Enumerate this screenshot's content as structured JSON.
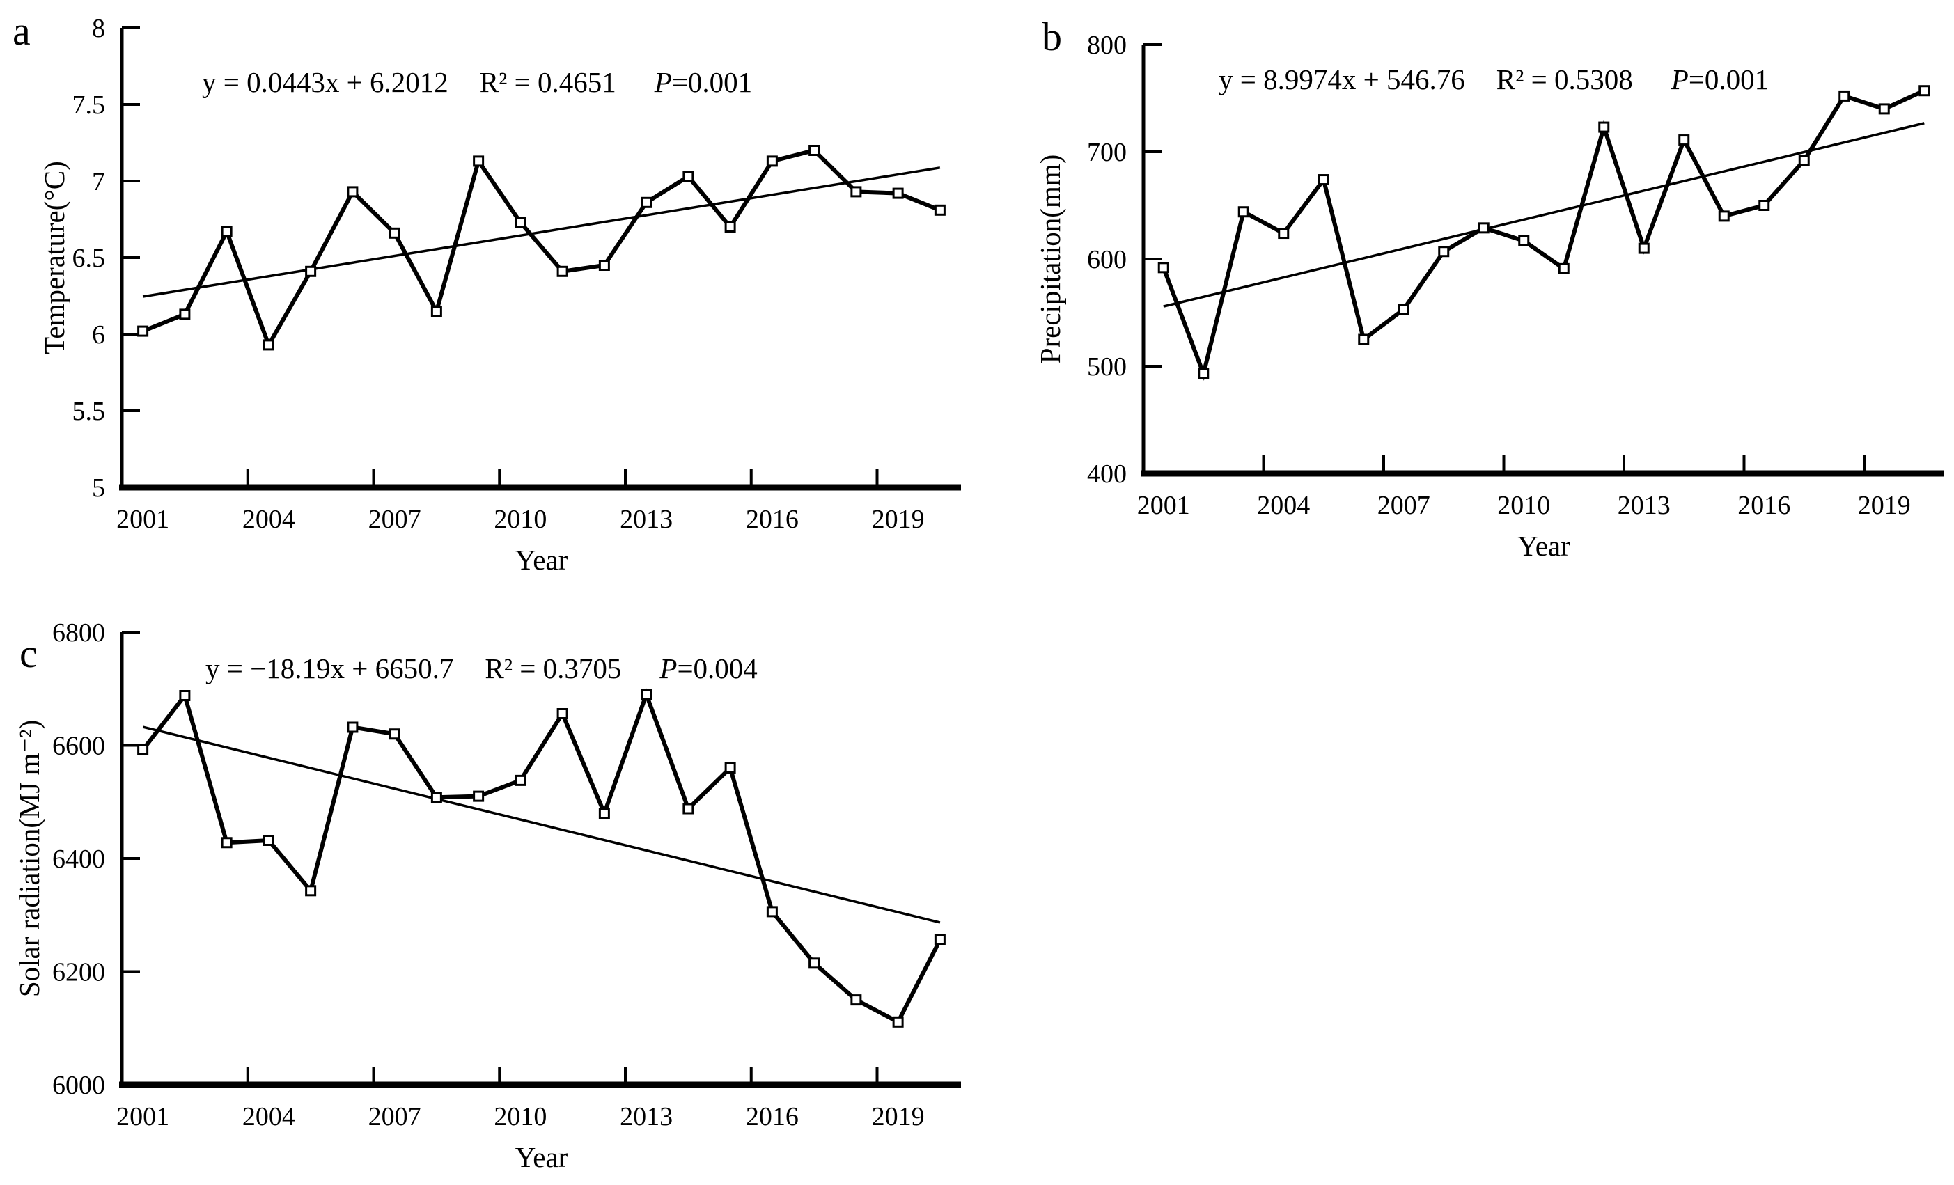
{
  "figure": {
    "background": "#ffffff",
    "ink_color": "#000000",
    "x_axis_title": "Year"
  },
  "chart_data": [
    {
      "id": "a",
      "type": "line",
      "panel_label": "a",
      "xlabel": "Year",
      "ylabel": "Temperature(°C)",
      "equation": "y = 0.0443x + 6.2012",
      "r_squared": "R² = 0.4651",
      "p_value": "P=0.001",
      "trend": {
        "slope": 0.0443,
        "intercept": 6.2012
      },
      "ylim": [
        5,
        8
      ],
      "yticks": [
        "8",
        "7.5",
        "7",
        "6.5",
        "6",
        "5.5",
        "5"
      ],
      "x": [
        2001,
        2002,
        2003,
        2004,
        2005,
        2006,
        2007,
        2008,
        2009,
        2010,
        2011,
        2012,
        2013,
        2014,
        2015,
        2016,
        2017,
        2018,
        2019,
        2020
      ],
      "values": [
        6.02,
        6.13,
        6.67,
        5.93,
        6.41,
        6.93,
        6.66,
        6.15,
        7.13,
        6.73,
        6.41,
        6.45,
        6.86,
        7.03,
        6.7,
        7.13,
        7.2,
        6.93,
        6.92,
        6.81
      ],
      "xtick_labels": [
        "2001",
        "2004",
        "2007",
        "2010",
        "2013",
        "2016",
        "2019"
      ]
    },
    {
      "id": "b",
      "type": "line",
      "panel_label": "b",
      "xlabel": "Year",
      "ylabel": "Precipitation(mm)",
      "equation": "y = 8.9974x + 546.76",
      "r_squared": "R² = 0.5308",
      "p_value": "P=0.001",
      "trend": {
        "slope": 8.9974,
        "intercept": 546.76
      },
      "ylim": [
        400,
        800
      ],
      "yticks": [
        "800",
        "700",
        "600",
        "500",
        "400"
      ],
      "x": [
        2001,
        2002,
        2003,
        2004,
        2005,
        2006,
        2007,
        2008,
        2009,
        2010,
        2011,
        2012,
        2013,
        2014,
        2015,
        2016,
        2017,
        2018,
        2019,
        2020
      ],
      "values": [
        592,
        493,
        644,
        624,
        674,
        525,
        553,
        607,
        629,
        617,
        591,
        723,
        610,
        711,
        640,
        650,
        692,
        752,
        740,
        757
      ],
      "xtick_labels": [
        "2001",
        "2004",
        "2007",
        "2010",
        "2013",
        "2016",
        "2019"
      ]
    },
    {
      "id": "c",
      "type": "line",
      "panel_label": "c",
      "xlabel": "Year",
      "ylabel": "Solar radiation(MJ m⁻²)",
      "equation": "y = −18.19x + 6650.7",
      "r_squared": "R² = 0.3705",
      "p_value": "P=0.004",
      "trend": {
        "slope": -18.19,
        "intercept": 6650.7
      },
      "ylim": [
        6000,
        6800
      ],
      "yticks": [
        "6800",
        "6600",
        "6400",
        "6200",
        "6000"
      ],
      "x": [
        2001,
        2002,
        2003,
        2004,
        2005,
        2006,
        2007,
        2008,
        2009,
        2010,
        2011,
        2012,
        2013,
        2014,
        2015,
        2016,
        2017,
        2018,
        2019,
        2020
      ],
      "values": [
        6592,
        6688,
        6428,
        6432,
        6343,
        6632,
        6620,
        6508,
        6510,
        6538,
        6656,
        6480,
        6690,
        6488,
        6560,
        6306,
        6215,
        6150,
        6111,
        6256
      ],
      "xtick_labels": [
        "2001",
        "2004",
        "2007",
        "2010",
        "2013",
        "2016",
        "2019"
      ]
    }
  ]
}
